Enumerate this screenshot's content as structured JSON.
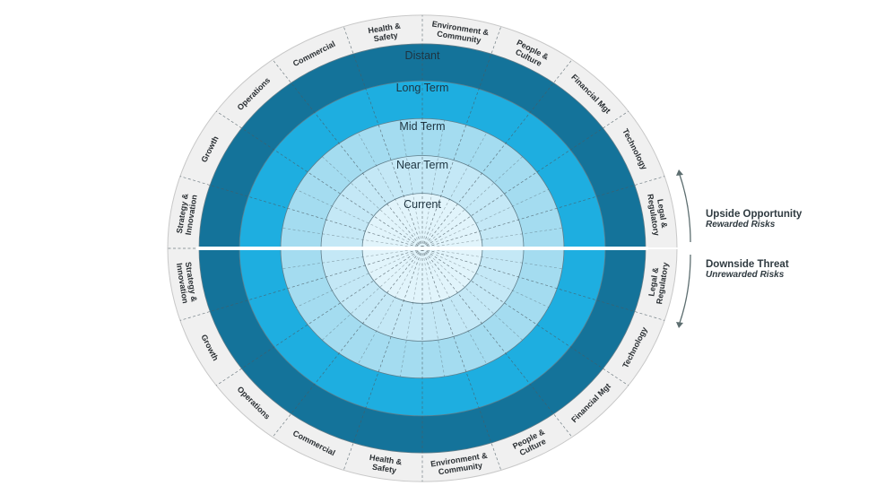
{
  "colors": {
    "outer_ring": "#f0f0f0",
    "distant": "#14739a",
    "long_term": "#1eaee0",
    "mid_term": "#a4dcf0",
    "near_term": "#c4e8f6",
    "current": "#e1f4fb",
    "divider": "#ffffff",
    "arrow": "#5d6e70"
  },
  "rings": [
    {
      "label": "Distant"
    },
    {
      "label": "Long Term"
    },
    {
      "label": "Mid Term"
    },
    {
      "label": "Near Term"
    },
    {
      "label": "Current"
    }
  ],
  "categories": [
    [
      "Legal &",
      "Regulatory"
    ],
    [
      "Technology"
    ],
    [
      "Financial Mgt"
    ],
    [
      "People &",
      "Culture"
    ],
    [
      "Environment &",
      "Community"
    ],
    [
      "Health &",
      "Safety"
    ],
    [
      "Commercial"
    ],
    [
      "Operations"
    ],
    [
      "Growth"
    ],
    [
      "Strategy &",
      "Innovation"
    ]
  ],
  "upside": {
    "title": "Upside Opportunity",
    "subtitle": "Rewarded Risks",
    "arrow_icon": "arrow-up"
  },
  "downside": {
    "title": "Downside Threat",
    "subtitle": "Unrewarded Risks",
    "arrow_icon": "arrow-down"
  }
}
